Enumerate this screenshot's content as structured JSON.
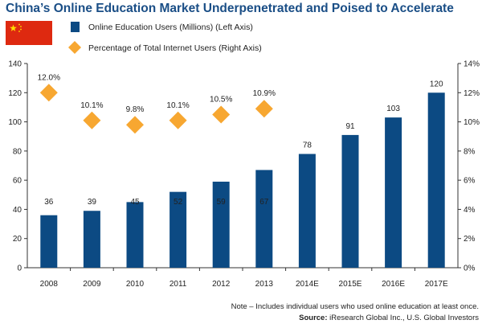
{
  "title": "China’s Online Education Market Underpenetrated and Poised to Accelerate",
  "legend": {
    "series_bar": "Online Education Users (Millions) (Left Axis)",
    "series_diamond": "Percentage of Total Internet Users (Right Axis)"
  },
  "note": "Note – Includes individual users who used online education at least once.",
  "source_label": "Source:",
  "source_text": " iResearch Global Inc., U.S. Global Investors",
  "colors": {
    "bar": "#0c4a83",
    "diamond": "#f7a731",
    "title": "#1a4e86",
    "flag_red": "#de2910",
    "flag_star": "#ffde00"
  },
  "icons": {
    "flag": "china-flag-icon"
  },
  "chart_data": {
    "type": "bar",
    "categories": [
      "2008",
      "2009",
      "2010",
      "2011",
      "2012",
      "2013",
      "2014E",
      "2015E",
      "2016E",
      "2017E"
    ],
    "series": [
      {
        "name": "Online Education Users (Millions) (Left Axis)",
        "type": "bar",
        "axis": "left",
        "values": [
          36,
          39,
          45,
          52,
          59,
          67,
          78,
          91,
          103,
          120
        ],
        "labels": [
          "36",
          "39",
          "45",
          "52",
          "59",
          "67",
          "78",
          "91",
          "103",
          "120"
        ]
      },
      {
        "name": "Percentage of Total Internet Users (Right Axis)",
        "type": "scatter",
        "axis": "right",
        "values": [
          12.0,
          10.1,
          9.8,
          10.1,
          10.5,
          10.9
        ],
        "labels": [
          "12.0%",
          "10.1%",
          "9.8%",
          "10.1%",
          "10.5%",
          "10.9%"
        ]
      }
    ],
    "y_left": {
      "lim": [
        0,
        140
      ],
      "ticks": [
        0,
        20,
        40,
        60,
        80,
        100,
        120,
        140
      ]
    },
    "y_right": {
      "lim": [
        0,
        14
      ],
      "ticks": [
        0,
        2,
        4,
        6,
        8,
        10,
        12,
        14
      ],
      "tick_labels": [
        "0%",
        "2%",
        "4%",
        "6%",
        "8%",
        "10%",
        "12%",
        "14%"
      ]
    },
    "grid": false,
    "legend_position": "top-left"
  }
}
